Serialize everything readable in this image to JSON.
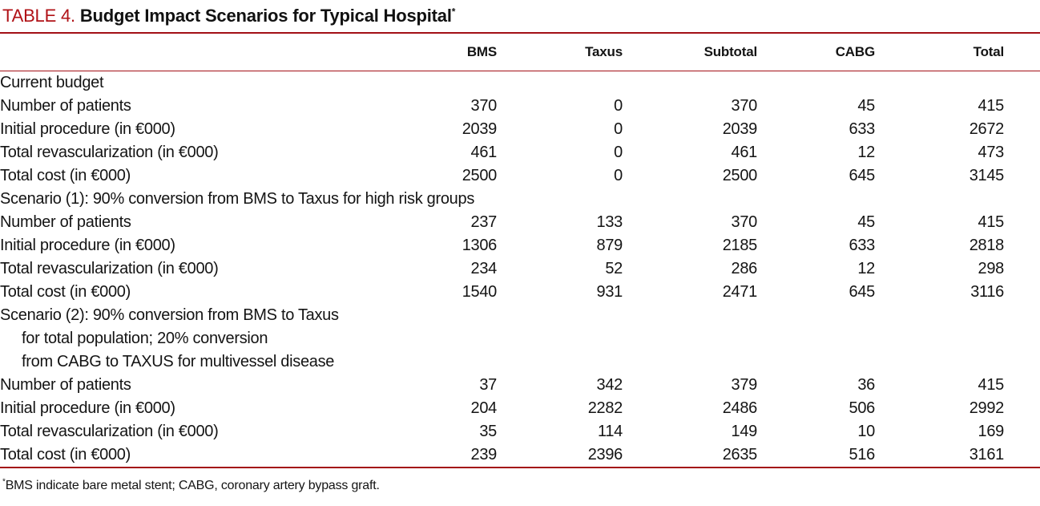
{
  "title": {
    "label": "TABLE 4.",
    "text": "Budget Impact Scenarios for Typical Hospital",
    "footnote_marker": "*"
  },
  "table": {
    "columns": [
      "BMS",
      "Taxus",
      "Subtotal",
      "CABG",
      "Total"
    ],
    "sections": [
      {
        "header_lines": [
          "Current budget"
        ],
        "rows": [
          {
            "label": "Number of patients",
            "values": [
              "370",
              "0",
              "370",
              "45",
              "415"
            ]
          },
          {
            "label": "Initial procedure (in €000)",
            "values": [
              "2039",
              "0",
              "2039",
              "633",
              "2672"
            ]
          },
          {
            "label": "Total revascularization (in €000)",
            "values": [
              "461",
              "0",
              "461",
              "12",
              "473"
            ]
          },
          {
            "label": "Total cost (in €000)",
            "values": [
              "2500",
              "0",
              "2500",
              "645",
              "3145"
            ]
          }
        ]
      },
      {
        "header_lines": [
          "Scenario (1): 90% conversion from BMS to Taxus for high risk groups"
        ],
        "rows": [
          {
            "label": "Number of patients",
            "values": [
              "237",
              "133",
              "370",
              "45",
              "415"
            ]
          },
          {
            "label": "Initial procedure (in €000)",
            "values": [
              "1306",
              "879",
              "2185",
              "633",
              "2818"
            ]
          },
          {
            "label": "Total revascularization (in €000)",
            "values": [
              "234",
              "52",
              "286",
              "12",
              "298"
            ]
          },
          {
            "label": "Total cost (in €000)",
            "values": [
              "1540",
              "931",
              "2471",
              "645",
              "3116"
            ]
          }
        ]
      },
      {
        "header_lines": [
          "Scenario (2): 90% conversion from BMS to Taxus",
          "for total population; 20% conversion",
          "from CABG to TAXUS for multivessel disease"
        ],
        "rows": [
          {
            "label": "Number of patients",
            "values": [
              "37",
              "342",
              "379",
              "36",
              "415"
            ]
          },
          {
            "label": "Initial procedure (in €000)",
            "values": [
              "204",
              "2282",
              "2486",
              "506",
              "2992"
            ]
          },
          {
            "label": "Total revascularization (in €000)",
            "values": [
              "35",
              "114",
              "149",
              "10",
              "169"
            ]
          },
          {
            "label": "Total cost (in €000)",
            "values": [
              "239",
              "2396",
              "2635",
              "516",
              "3161"
            ]
          }
        ]
      }
    ]
  },
  "footnote": {
    "marker": "*",
    "text": "BMS indicate bare metal stent; CABG, coronary artery bypass graft."
  },
  "colors": {
    "accent_red": "#b01116",
    "rule_red": "#a31016",
    "text": "#141414"
  }
}
